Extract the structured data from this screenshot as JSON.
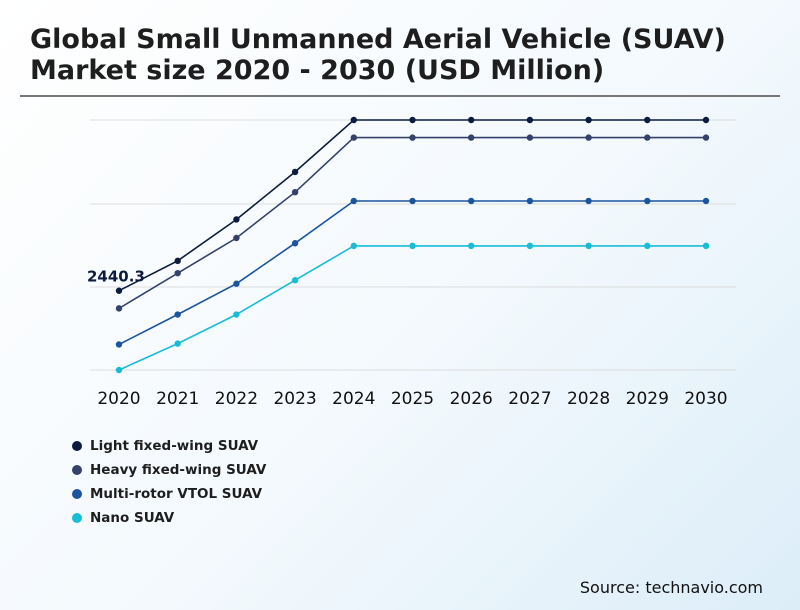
{
  "title": "Global Small Unmanned Aerial Vehicle (SUAV)\nMarket size 2020 - 2030 (USD Million)",
  "source": "Source: technavio.com",
  "chart_data": {
    "type": "line",
    "title": "Global Small Unmanned Aerial Vehicle (SUAV) Market size 2020 - 2030 (USD Million)",
    "xlabel": "",
    "ylabel": "",
    "categories": [
      "2020",
      "2021",
      "2022",
      "2023",
      "2024",
      "2025",
      "2026",
      "2027",
      "2028",
      "2029",
      "2030"
    ],
    "grid": "horizontal",
    "legend_position": "bottom-left",
    "annotations": [
      {
        "label": "2440.3",
        "series": "Light fixed-wing SUAV",
        "category": "2020"
      }
    ],
    "series": [
      {
        "name": "Light fixed-wing SUAV",
        "color": "#0d1b3e",
        "values": [
          2440.3,
          2780,
          3250,
          3790,
          4380,
          4380,
          4380,
          4380,
          4380,
          4380,
          4380
        ]
      },
      {
        "name": "Heavy fixed-wing SUAV",
        "color": "#33416b",
        "values": [
          2240,
          2640,
          3040,
          3560,
          4180,
          4180,
          4180,
          4180,
          4180,
          4180,
          4180
        ]
      },
      {
        "name": "Multi-rotor VTOL SUAV",
        "color": "#1a559e",
        "values": [
          1830,
          2170,
          2520,
          2980,
          3460,
          3460,
          3460,
          3460,
          3460,
          3460,
          3460
        ]
      },
      {
        "name": "Nano SUAV",
        "color": "#17bdd7",
        "values": [
          1540,
          1840,
          2170,
          2560,
          2950,
          2950,
          2950,
          2950,
          2950,
          2950,
          2950
        ]
      }
    ]
  }
}
